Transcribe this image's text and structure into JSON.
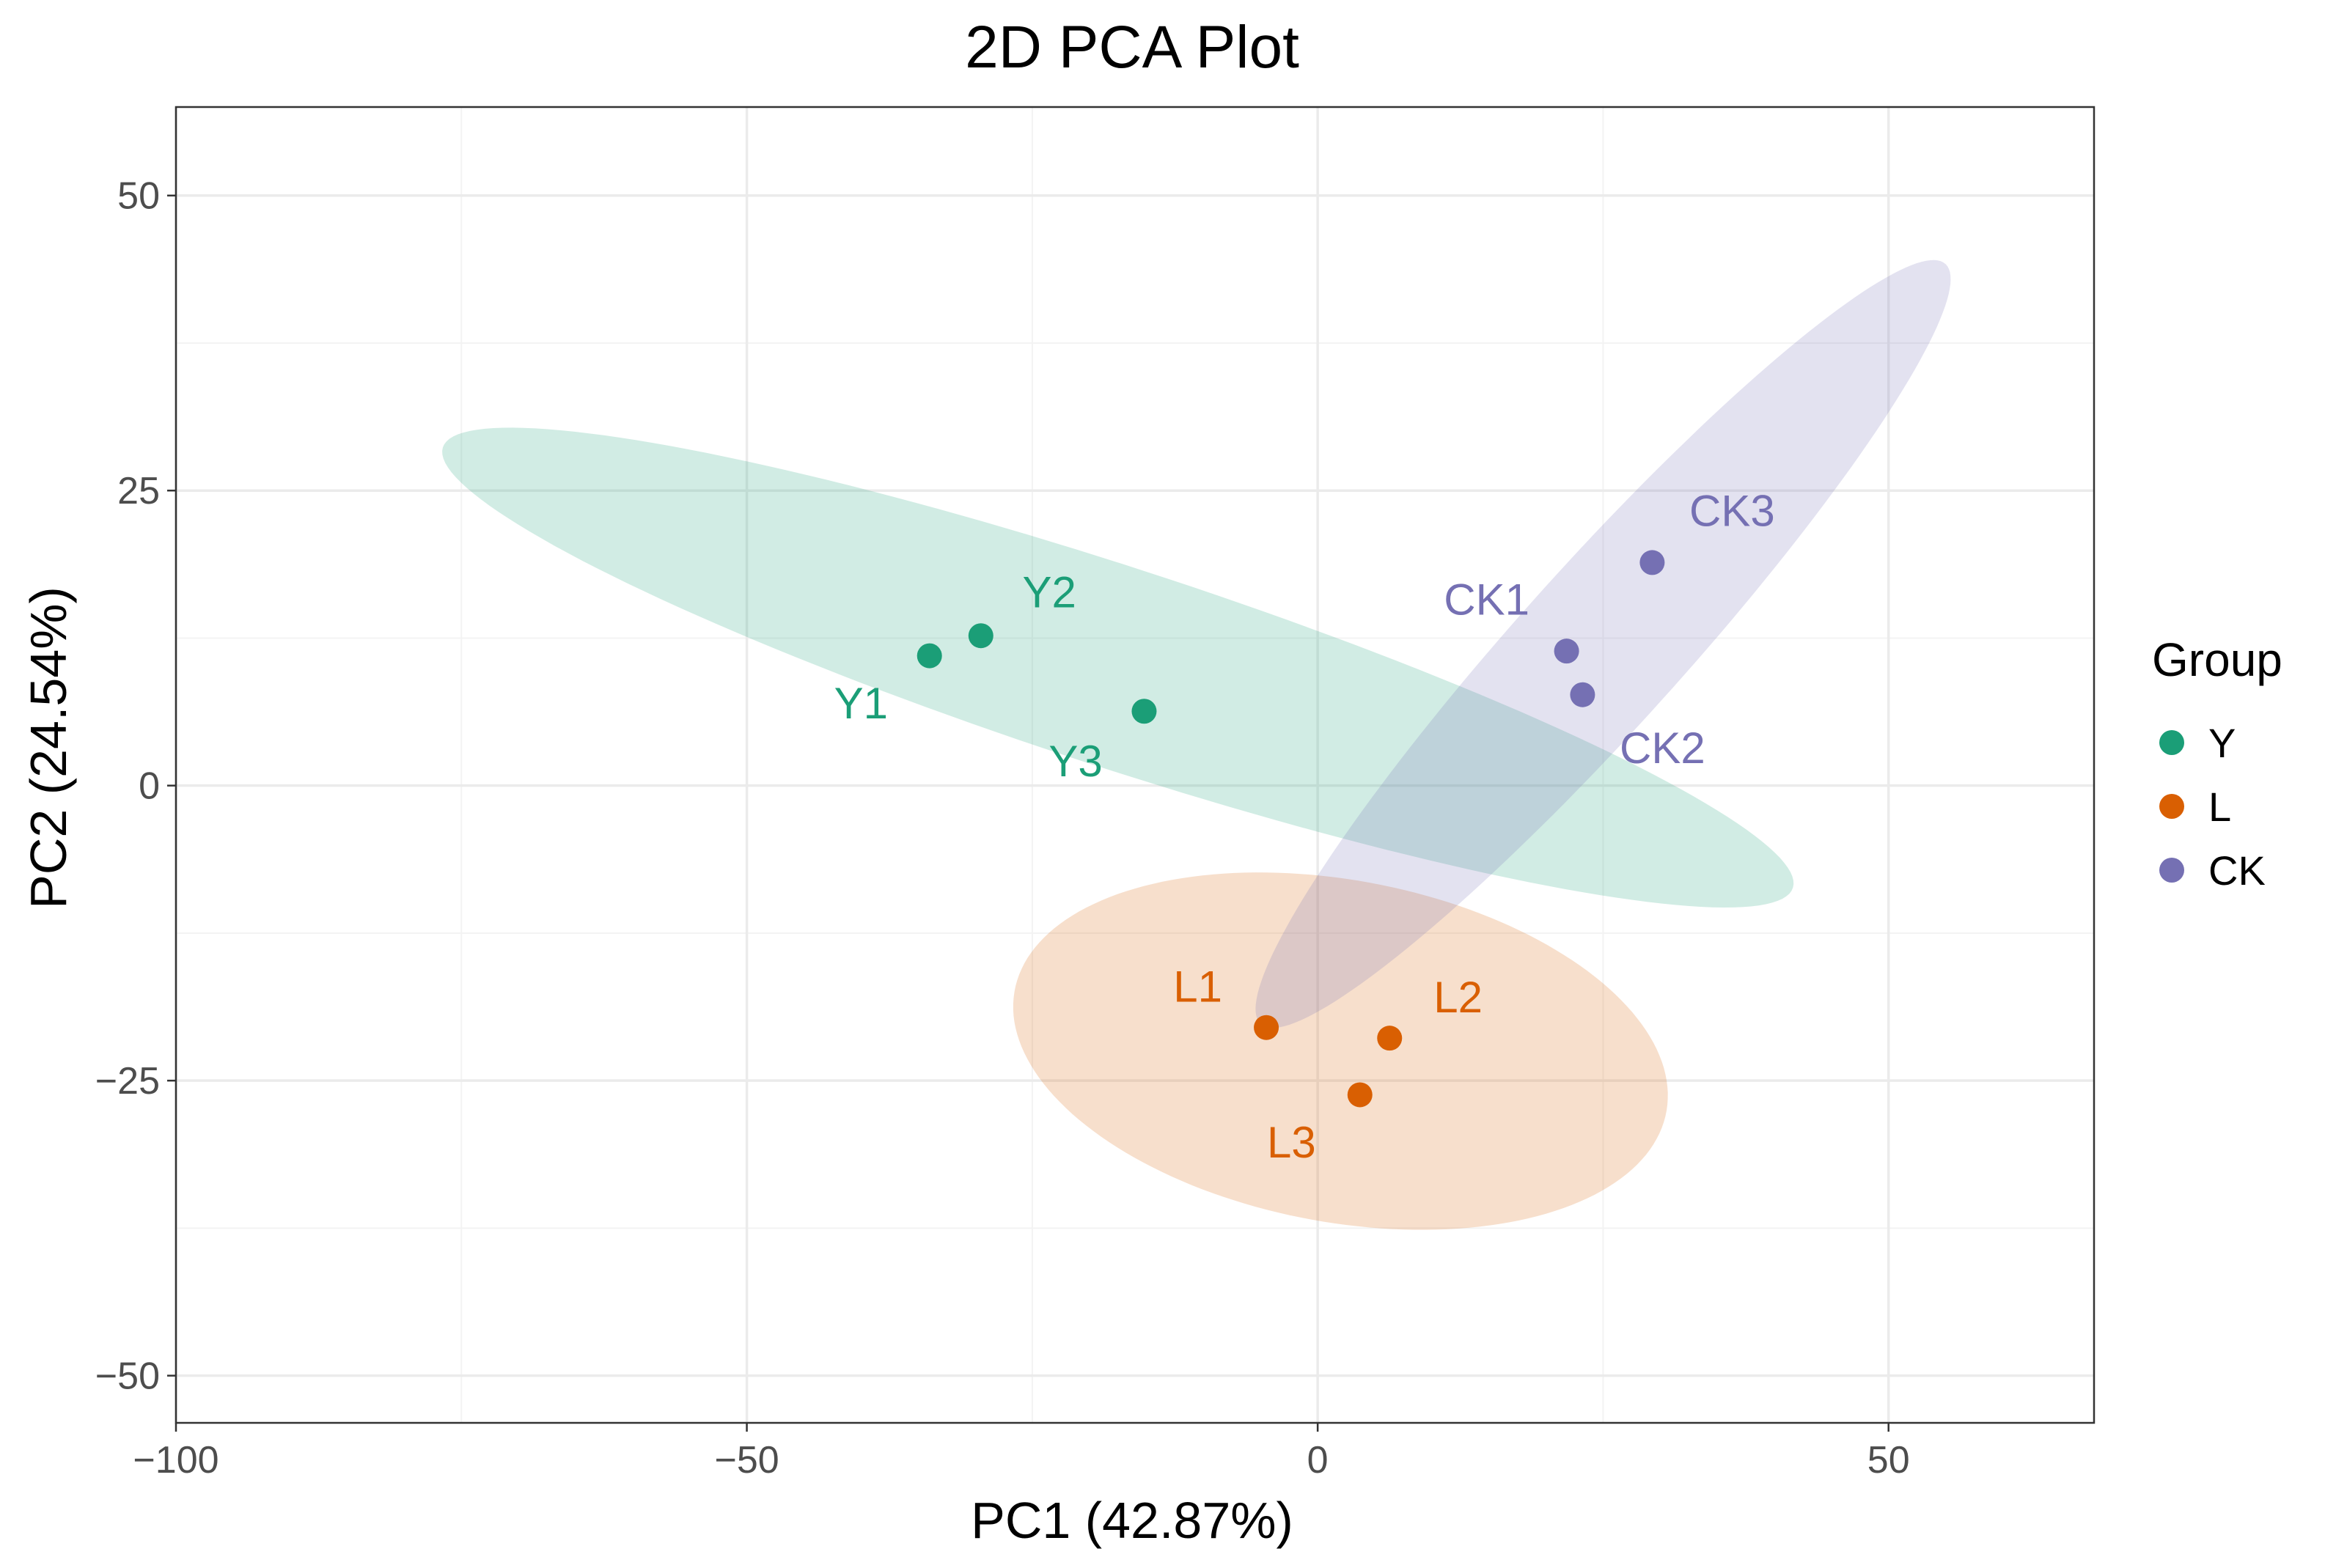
{
  "chart_data": {
    "type": "scatter",
    "title": "2D PCA Plot",
    "xlabel": "PC1 (42.87%)",
    "ylabel": "PC2 (24.54%)",
    "xlim": [
      -100,
      68
    ],
    "ylim": [
      -54,
      57.5
    ],
    "xticks": [
      -100,
      -50,
      0,
      50
    ],
    "yticks": [
      -50,
      -25,
      0,
      25,
      50
    ],
    "xtick_labels": [
      "−100",
      "−50",
      "0",
      "50"
    ],
    "ytick_labels": [
      "−50",
      "−25",
      "0",
      "25",
      "50"
    ],
    "grid": true,
    "legend": {
      "title": "Group",
      "placement": "right",
      "entries": [
        {
          "label": "Y",
          "color": "#1b9e77"
        },
        {
          "label": "L",
          "color": "#d95f02"
        },
        {
          "label": "CK",
          "color": "#7570b3"
        }
      ]
    },
    "series": [
      {
        "name": "Y",
        "color": "#1b9e77",
        "points": [
          {
            "label": "Y1",
            "x": -34.0,
            "y": 11.0,
            "label_dx": -6.0,
            "label_dy": -4.0
          },
          {
            "label": "Y2",
            "x": -29.5,
            "y": 12.7,
            "label_dx": 6.0,
            "label_dy": 3.7
          },
          {
            "label": "Y3",
            "x": -15.2,
            "y": 6.3,
            "label_dx": -6.0,
            "label_dy": -4.2
          }
        ],
        "ellipse": {
          "cx": -17.5,
          "cy": 10.0,
          "rx": 62.0,
          "ry": 8.5,
          "angle_deg": -17.5
        }
      },
      {
        "name": "L",
        "color": "#d95f02",
        "points": [
          {
            "label": "L1",
            "x": -4.5,
            "y": -20.5,
            "label_dx": -6.0,
            "label_dy": 3.5
          },
          {
            "label": "L2",
            "x": 6.3,
            "y": -21.4,
            "label_dx": 6.0,
            "label_dy": 3.5
          },
          {
            "label": "L3",
            "x": 3.7,
            "y": -26.2,
            "label_dx": -6.0,
            "label_dy": -4.0
          }
        ],
        "ellipse": {
          "cx": 2.0,
          "cy": -22.5,
          "rx": 29.0,
          "ry": 14.5,
          "angle_deg": -10.0
        }
      },
      {
        "name": "CK",
        "color": "#7570b3",
        "points": [
          {
            "label": "CK1",
            "x": 21.8,
            "y": 11.4,
            "label_dx": -7.0,
            "label_dy": 4.4
          },
          {
            "label": "CK2",
            "x": 23.2,
            "y": 7.7,
            "label_dx": 7.0,
            "label_dy": -4.5
          },
          {
            "label": "CK3",
            "x": 29.3,
            "y": 18.9,
            "label_dx": 7.0,
            "label_dy": 4.4
          }
        ],
        "ellipse": {
          "cx": 25.0,
          "cy": 12.0,
          "rx": 44.0,
          "ry": 7.0,
          "angle_deg": 47.0
        }
      }
    ]
  }
}
